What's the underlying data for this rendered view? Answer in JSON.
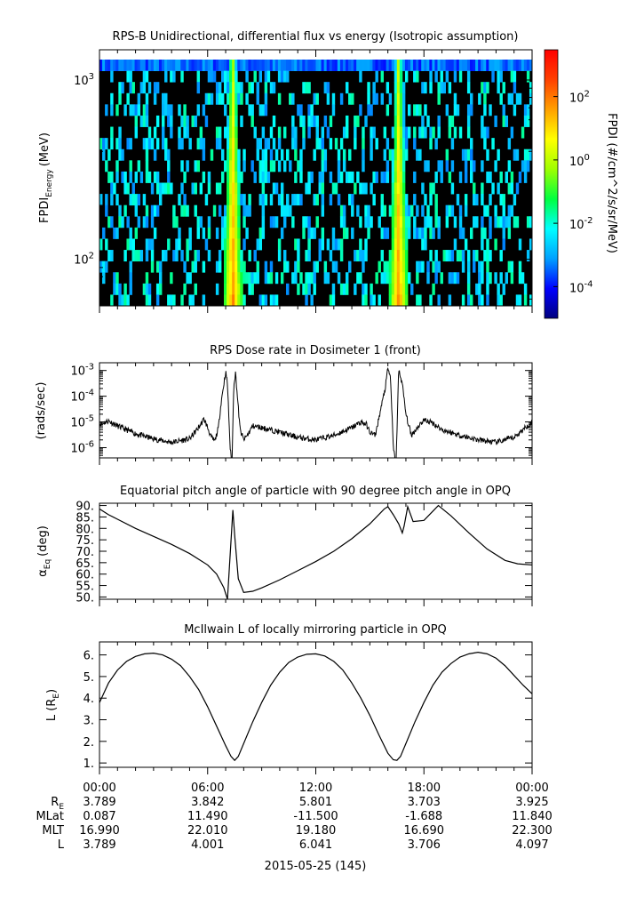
{
  "chart_data": [
    {
      "type": "heatmap",
      "title": "RPS-B  Unidirectional, differential flux vs energy (Isotropic assumption)",
      "ylabel": "FPDI",
      "ylabel_sub": "Energy",
      "ylabel_unit": "(MeV)",
      "yscale": "log",
      "ylim": [
        55,
        1300
      ],
      "yticks": [
        {
          "value": 100,
          "base": "10",
          "exp": "2"
        },
        {
          "value": 1000,
          "base": "10",
          "exp": "3"
        }
      ],
      "xlim": [
        "00:00",
        "24:00"
      ],
      "energy_bands": 22,
      "flux_peaks_hours": [
        7.4,
        16.6
      ],
      "colorbar": {
        "label": "FPDI (#/cm^2/s/sr/MeV)",
        "scale": "log",
        "range": [
          1e-05,
          3000
        ],
        "ticks": [
          {
            "base": "10",
            "exp": "2"
          },
          {
            "base": "10",
            "exp": "0"
          },
          {
            "base": "10",
            "exp": "-2"
          },
          {
            "base": "10",
            "exp": "-4"
          }
        ],
        "colors": [
          "#00007f",
          "#0000ff",
          "#00a0ff",
          "#00ffff",
          "#00ff40",
          "#a0ff00",
          "#ffff00",
          "#ffa000",
          "#ff4000",
          "#ff0000"
        ]
      }
    },
    {
      "type": "line",
      "title": "RPS  Dose rate in Dosimeter 1 (front)",
      "ylabel": "(rads/sec)",
      "yscale": "log",
      "ylim": [
        4e-07,
        0.002
      ],
      "yticks": [
        {
          "value": 1e-06,
          "base": "10",
          "exp": "-6"
        },
        {
          "value": 1e-05,
          "base": "10",
          "exp": "-5"
        },
        {
          "value": 0.0001,
          "base": "10",
          "exp": "-4"
        },
        {
          "value": 0.001,
          "base": "10",
          "exp": "-3"
        }
      ],
      "x_hours": [
        0,
        0.5,
        1,
        2,
        3,
        4,
        5,
        5.5,
        5.8,
        6.0,
        6.2,
        6.4,
        6.6,
        6.75,
        6.9,
        7.0,
        7.1,
        7.25,
        7.35,
        7.45,
        7.55,
        7.65,
        7.8,
        8.0,
        8.2,
        8.5,
        9,
        10,
        11,
        12,
        13,
        14,
        14.5,
        14.8,
        15.0,
        15.3,
        15.6,
        15.85,
        16.0,
        16.15,
        16.3,
        16.45,
        16.6,
        16.8,
        17.0,
        17.3,
        17.7,
        18,
        18.5,
        19,
        20,
        21,
        22,
        23,
        24
      ],
      "values": [
        8e-06,
        1.1e-05,
        7e-06,
        3.5e-06,
        2.2e-06,
        1.6e-06,
        2.2e-06,
        6e-06,
        1.3e-05,
        6e-06,
        2.5e-06,
        1.8e-06,
        6e-06,
        6e-05,
        0.0003,
        0.0009,
        0.0003,
        1e-06,
        2e-07,
        0.0003,
        0.0008,
        0.0001,
        5e-06,
        2e-06,
        3e-06,
        7e-06,
        6e-06,
        4e-06,
        2.5e-06,
        2e-06,
        3e-06,
        6e-06,
        1e-05,
        8e-06,
        4e-06,
        3e-06,
        3e-05,
        0.0002,
        0.0012,
        0.0005,
        1e-06,
        2e-07,
        0.0011,
        0.0003,
        2e-05,
        3e-06,
        7e-06,
        1.2e-05,
        9e-06,
        5e-06,
        3e-06,
        2e-06,
        1.6e-06,
        2.5e-06,
        1e-05
      ]
    },
    {
      "type": "line",
      "title": "Equatorial pitch angle of particle with 90 degree pitch angle in OPQ",
      "ylabel": "α",
      "ylabel_sub": "Eq",
      "ylabel_unit": "(deg)",
      "ylim": [
        49,
        91
      ],
      "yticks": [
        50,
        55,
        60,
        65,
        70,
        75,
        80,
        85,
        90
      ],
      "ytick_labels": [
        "50.",
        "55.",
        "60.",
        "65.",
        "70.",
        "75.",
        "80.",
        "85.",
        "90."
      ],
      "x_hours": [
        0,
        0.5,
        1,
        2,
        3,
        4,
        5,
        6,
        6.5,
        6.9,
        7.1,
        7.3,
        7.4,
        7.5,
        7.7,
        8.0,
        8.5,
        9,
        10,
        11,
        12,
        13,
        14,
        15,
        15.8,
        16.0,
        16.3,
        16.6,
        16.8,
        16.9,
        17.1,
        17.4,
        18,
        18.8,
        19.5,
        20.5,
        21.5,
        22.5,
        23.2,
        24
      ],
      "values": [
        88.5,
        86,
        84,
        80,
        76.5,
        73,
        69,
        64,
        60,
        54,
        49,
        75,
        88,
        77,
        58,
        52,
        52.5,
        54,
        57.5,
        61.5,
        65.5,
        70,
        75.5,
        82,
        88.5,
        89.5,
        86,
        82,
        78,
        81,
        89.5,
        83,
        83.5,
        90,
        85.5,
        78,
        71,
        66,
        64.5,
        64
      ]
    },
    {
      "type": "line",
      "title": "McIlwain L of locally mirroring particle in OPQ",
      "ylabel": "L (R",
      "ylabel_sub": "E",
      "ylabel_unit": ")",
      "ylim": [
        0.8,
        6.6
      ],
      "yticks": [
        1,
        2,
        3,
        4,
        5,
        6
      ],
      "ytick_labels": [
        "1.",
        "2.",
        "3.",
        "4.",
        "5.",
        "6."
      ],
      "x_hours": [
        0,
        0.5,
        1,
        1.5,
        2,
        2.5,
        3,
        3.5,
        4,
        4.5,
        5,
        5.5,
        6,
        6.5,
        7,
        7.3,
        7.5,
        7.7,
        8,
        8.5,
        9,
        9.5,
        10,
        10.5,
        11,
        11.5,
        12,
        12.5,
        13,
        13.5,
        14,
        14.5,
        15,
        15.5,
        16,
        16.3,
        16.5,
        16.7,
        17,
        17.5,
        18,
        18.5,
        19,
        19.5,
        20,
        20.5,
        21,
        21.5,
        22,
        22.5,
        23,
        23.5,
        24
      ],
      "values": [
        3.79,
        4.7,
        5.3,
        5.7,
        5.93,
        6.05,
        6.08,
        6.0,
        5.8,
        5.5,
        5.0,
        4.4,
        3.6,
        2.7,
        1.8,
        1.3,
        1.12,
        1.3,
        1.9,
        2.9,
        3.8,
        4.6,
        5.2,
        5.65,
        5.9,
        6.03,
        6.05,
        5.95,
        5.7,
        5.3,
        4.7,
        4.0,
        3.2,
        2.3,
        1.45,
        1.15,
        1.12,
        1.3,
        1.9,
        2.9,
        3.8,
        4.6,
        5.2,
        5.6,
        5.9,
        6.05,
        6.12,
        6.05,
        5.85,
        5.5,
        5.05,
        4.6,
        4.2
      ]
    }
  ],
  "time_axis": {
    "tick_hours": [
      0,
      6,
      12,
      18,
      24
    ],
    "labels": [
      "00:00",
      "06:00",
      "12:00",
      "18:00",
      "00:00"
    ],
    "minor_step_hours": 1,
    "date_label": "2015-05-25 (145)"
  },
  "ephemeris": {
    "rows": [
      {
        "label": "R",
        "label_sub": "E",
        "values": [
          "3.789",
          "3.842",
          "5.801",
          "3.703",
          "3.925"
        ]
      },
      {
        "label": "MLat",
        "label_sub": "",
        "values": [
          "0.087",
          "11.490",
          "-11.500",
          "-1.688",
          "11.840"
        ]
      },
      {
        "label": "MLT",
        "label_sub": "",
        "values": [
          "16.990",
          "22.010",
          "19.180",
          "16.690",
          "22.300"
        ]
      },
      {
        "label": "L",
        "label_sub": "",
        "values": [
          "3.789",
          "4.001",
          "6.041",
          "3.706",
          "4.097"
        ]
      }
    ]
  }
}
